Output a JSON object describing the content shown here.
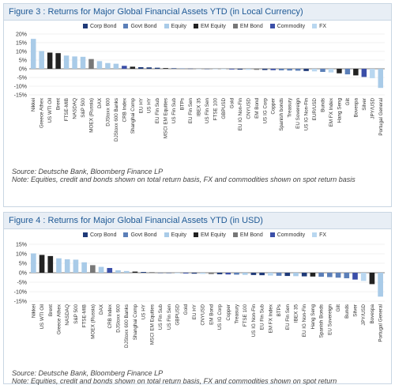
{
  "figures": [
    {
      "title": "Figure 3 : Returns for Major Global Financial Assets YTD (in Local Currency)",
      "source": "Source: Deutsche Bank, Bloomberg Finance LP",
      "note": "Note: Equities, credit and bonds shown on total return basis, FX and commodities shown on spot return basis"
    },
    {
      "title": "Figure 4 : Returns for Major Global Financial Assets YTD (in USD)",
      "source": "Source: Deutsche Bank, Bloomberg Finance LP",
      "note": "Note: Equities, credit and bonds shown on total return basis, FX and commodities shown on spot return"
    }
  ],
  "legend": [
    {
      "name": "Corp Bond",
      "color": "#1f3a78"
    },
    {
      "name": "Govt Bond",
      "color": "#5b7fb8"
    },
    {
      "name": "Equity",
      "color": "#a9cbe8"
    },
    {
      "name": "EM Equity",
      "color": "#222222"
    },
    {
      "name": "EM Bond",
      "color": "#777777"
    },
    {
      "name": "Commodity",
      "color": "#3b4fa8"
    },
    {
      "name": "FX",
      "color": "#b9d7f0"
    }
  ],
  "chart_data": [
    {
      "type": "bar",
      "title": "Figure 3 : Returns for Major Global Financial Assets YTD (in Local Currency)",
      "ylim": [
        -15,
        20
      ],
      "yticks": [
        "20%",
        "15%",
        "10%",
        "5%",
        "0%",
        "-5%",
        "-10%",
        "-15%"
      ],
      "ytick_values": [
        20,
        15,
        10,
        5,
        0,
        -5,
        -10,
        -15
      ],
      "grid": true,
      "legend_position": "top",
      "categories": [
        "Nikkei",
        "Greece Athex",
        "US WTI Oil",
        "Brent",
        "FTSE-MIB",
        "NASDAQ",
        "S&P 500",
        "MOEX (Russia)",
        "DAX",
        "DJStoxx 600",
        "DJStoxx 600 Banks",
        "CRB Index",
        "Shanghai Comp",
        "EU HY",
        "US HY",
        "EU Fin Sub",
        "MSCI EM Equities",
        "US Fin Sub",
        "BTPs",
        "EU Fin Sen",
        "IBEX 35",
        "US Fin Sen",
        "FTSE 100",
        "GBPUSD",
        "Gold",
        "EU IG Non-Fin",
        "CNYUSD",
        "EM Bond",
        "US IG Corp",
        "Copper",
        "Spanish bonds",
        "Treasury",
        "EU Sovereign",
        "US IG Non-Fin",
        "EUR/USD",
        "Bunds",
        "EM FX Index",
        "Hang Seng",
        "Gilt",
        "Bovespa",
        "Silver",
        "JPY/USD",
        "Portugal General"
      ],
      "values": [
        17.2,
        10.2,
        9.3,
        9.0,
        7.6,
        7.1,
        6.9,
        5.6,
        4.4,
        3.3,
        2.9,
        1.7,
        1.2,
        0.9,
        0.8,
        0.6,
        0.4,
        0.3,
        0.2,
        0.1,
        0.0,
        -0.1,
        -0.2,
        -0.3,
        -0.4,
        -0.5,
        -0.6,
        -0.6,
        -0.7,
        -0.8,
        -0.9,
        -1.0,
        -1.1,
        -1.3,
        -1.5,
        -1.8,
        -2.1,
        -2.6,
        -3.2,
        -3.8,
        -4.7,
        -5.4,
        -11.0
      ],
      "classes": [
        "Equity",
        "Equity",
        "EM Equity",
        "EM Equity",
        "Equity",
        "Equity",
        "Equity",
        "EM Bond",
        "Equity",
        "Equity",
        "Equity",
        "Commodity",
        "EM Equity",
        "Corp Bond",
        "Corp Bond",
        "Corp Bond",
        "EM Equity",
        "Corp Bond",
        "Govt Bond",
        "Corp Bond",
        "Equity",
        "Corp Bond",
        "Equity",
        "FX",
        "Commodity",
        "Corp Bond",
        "FX",
        "EM Bond",
        "Corp Bond",
        "Commodity",
        "Govt Bond",
        "Govt Bond",
        "Govt Bond",
        "Corp Bond",
        "FX",
        "Govt Bond",
        "FX",
        "EM Equity",
        "Govt Bond",
        "EM Equity",
        "Commodity",
        "FX",
        "Equity"
      ]
    },
    {
      "type": "bar",
      "title": "Figure 4 : Returns for Major Global Financial Assets YTD (in USD)",
      "ylim": [
        -15,
        15
      ],
      "yticks": [
        "15%",
        "10%",
        "5%",
        "0%",
        "-5%",
        "-10%",
        "-15%"
      ],
      "ytick_values": [
        15,
        10,
        5,
        0,
        -5,
        -10,
        -15
      ],
      "grid": true,
      "legend_position": "top",
      "categories": [
        "Nikkei",
        "US WTI Oil",
        "Brent",
        "Greece Athex",
        "NASDAQ",
        "S&P 500",
        "FTSE-MIB",
        "MOEX (Russia)",
        "DAX",
        "CRB Index",
        "DJStoxx 600",
        "DJStoxx 600 Banks",
        "Shanghai Comp",
        "US HY",
        "MSCI EM Equities",
        "US Fin Sub",
        "US Fin Sen",
        "GBPUSD",
        "Gold",
        "EU HY",
        "CNYUSD",
        "EM Bond",
        "US IG Corp",
        "Copper",
        "Treasury",
        "FTSE 100",
        "US IG Non-Fin",
        "EU Fin Sub",
        "EM FX Index",
        "BTPs",
        "EU Fin Sen",
        "IBEX 35",
        "EU IG Non-Fin",
        "Hang Seng",
        "Spanish Bonds",
        "EU Sovereign",
        "Gilt",
        "Bunds",
        "Silver",
        "JPY/USD",
        "Bovespa",
        "Portugal General"
      ],
      "values": [
        10.2,
        9.4,
        8.8,
        7.6,
        7.1,
        6.9,
        5.5,
        4.0,
        3.1,
        2.5,
        1.3,
        0.9,
        0.6,
        0.4,
        0.2,
        -0.1,
        -0.2,
        -0.3,
        -0.4,
        -0.5,
        -0.6,
        -0.7,
        -0.8,
        -0.9,
        -1.0,
        -1.1,
        -1.2,
        -1.3,
        -1.5,
        -1.6,
        -1.7,
        -1.8,
        -1.9,
        -2.0,
        -2.1,
        -2.3,
        -2.6,
        -2.9,
        -3.6,
        -4.3,
        -6.0,
        -12.6
      ],
      "classes": [
        "Equity",
        "EM Equity",
        "EM Equity",
        "Equity",
        "Equity",
        "Equity",
        "Equity",
        "EM Bond",
        "Equity",
        "Commodity",
        "Equity",
        "Equity",
        "EM Equity",
        "Corp Bond",
        "EM Equity",
        "Corp Bond",
        "Corp Bond",
        "FX",
        "Commodity",
        "Corp Bond",
        "FX",
        "EM Bond",
        "Corp Bond",
        "Commodity",
        "Govt Bond",
        "Equity",
        "Corp Bond",
        "Corp Bond",
        "FX",
        "Govt Bond",
        "Corp Bond",
        "Equity",
        "Corp Bond",
        "EM Equity",
        "Govt Bond",
        "Govt Bond",
        "Govt Bond",
        "Govt Bond",
        "Commodity",
        "FX",
        "EM Equity",
        "Equity"
      ]
    }
  ]
}
